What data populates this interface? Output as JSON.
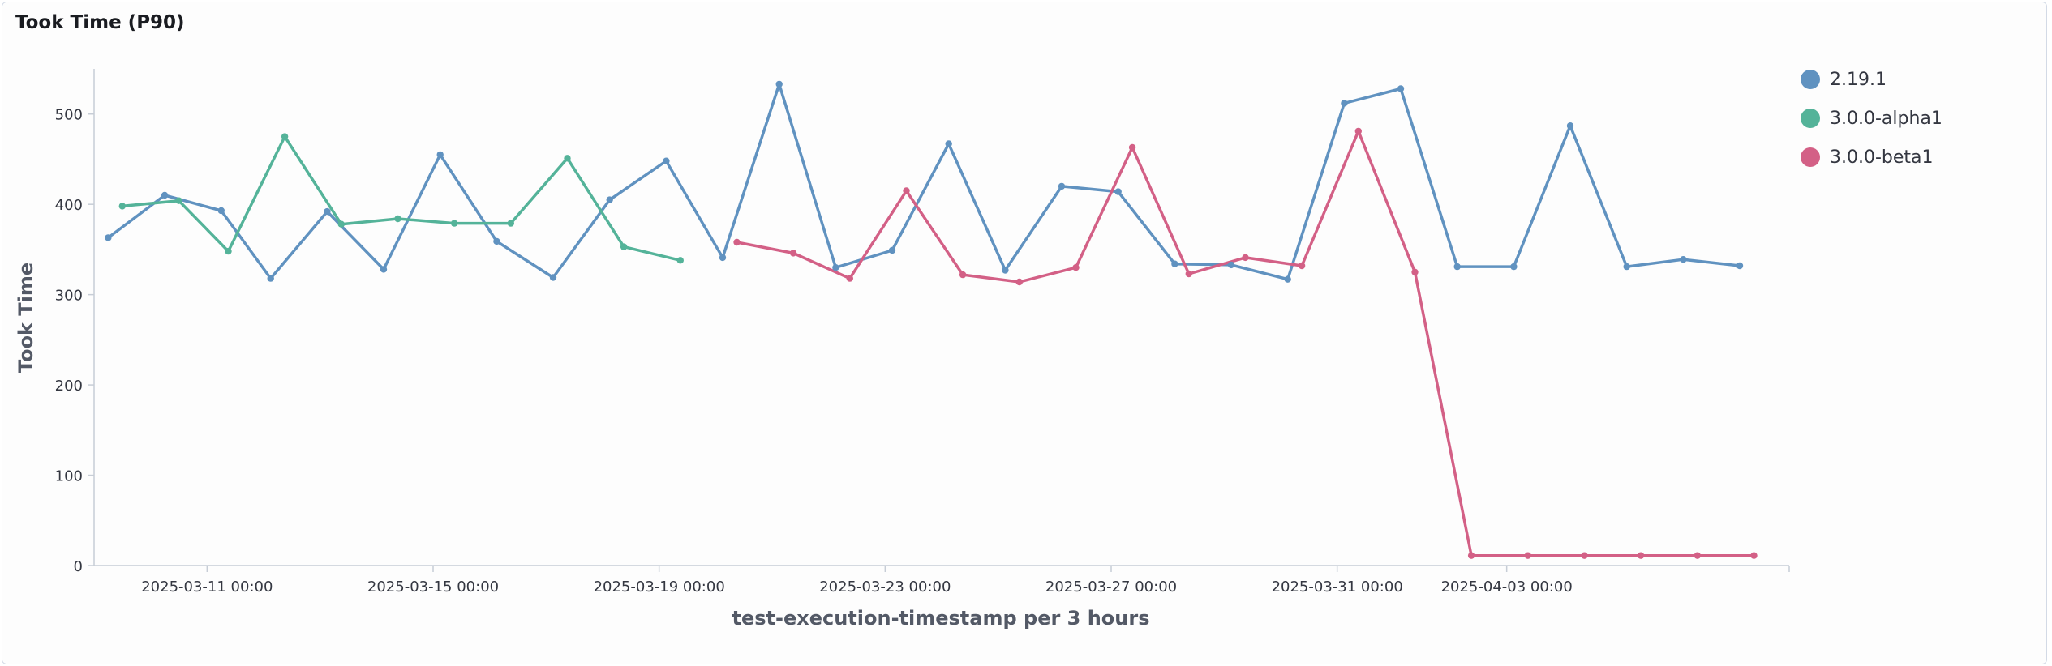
{
  "panel": {
    "title": "Took Time (P90)"
  },
  "chart_data": {
    "type": "line",
    "title": "Took Time (P90)",
    "xlabel": "test-execution-timestamp per 3 hours",
    "ylabel": "Took Time",
    "x_range": [
      "2025-03-09 00:00",
      "2025-04-08 00:00"
    ],
    "ylim": [
      0,
      550
    ],
    "y_ticks": [
      0,
      100,
      200,
      300,
      400,
      500
    ],
    "x_ticks": [
      {
        "t": "2025-03-11 00:00",
        "label": "2025-03-11 00:00"
      },
      {
        "t": "2025-03-15 00:00",
        "label": "2025-03-15 00:00"
      },
      {
        "t": "2025-03-19 00:00",
        "label": "2025-03-19 00:00"
      },
      {
        "t": "2025-03-23 00:00",
        "label": "2025-03-23 00:00"
      },
      {
        "t": "2025-03-27 00:00",
        "label": "2025-03-27 00:00"
      },
      {
        "t": "2025-03-31 00:00",
        "label": "2025-03-31 00:00"
      },
      {
        "t": "2025-04-03 00:00",
        "label": "2025-04-03 00:00"
      }
    ],
    "grid": false,
    "legend_position": "top-right",
    "series": [
      {
        "name": "2.19.1",
        "color": "#6092c0",
        "points": [
          [
            "2025-03-09 06:00",
            363
          ],
          [
            "2025-03-10 06:00",
            410
          ],
          [
            "2025-03-11 06:00",
            393
          ],
          [
            "2025-03-12 03:00",
            318
          ],
          [
            "2025-03-13 03:00",
            392
          ],
          [
            "2025-03-14 03:00",
            328
          ],
          [
            "2025-03-15 03:00",
            455
          ],
          [
            "2025-03-16 03:00",
            359
          ],
          [
            "2025-03-17 03:00",
            319
          ],
          [
            "2025-03-18 03:00",
            405
          ],
          [
            "2025-03-19 03:00",
            448
          ],
          [
            "2025-03-20 03:00",
            341
          ],
          [
            "2025-03-21 03:00",
            533
          ],
          [
            "2025-03-22 03:00",
            330
          ],
          [
            "2025-03-23 03:00",
            349
          ],
          [
            "2025-03-24 03:00",
            467
          ],
          [
            "2025-03-25 03:00",
            327
          ],
          [
            "2025-03-26 03:00",
            420
          ],
          [
            "2025-03-27 03:00",
            414
          ],
          [
            "2025-03-28 03:00",
            334
          ],
          [
            "2025-03-29 03:00",
            333
          ],
          [
            "2025-03-30 03:00",
            317
          ],
          [
            "2025-03-31 03:00",
            512
          ],
          [
            "2025-04-01 03:00",
            528
          ],
          [
            "2025-04-02 03:00",
            331
          ],
          [
            "2025-04-03 03:00",
            331
          ],
          [
            "2025-04-04 03:00",
            487
          ],
          [
            "2025-04-05 03:00",
            331
          ],
          [
            "2025-04-06 03:00",
            339
          ],
          [
            "2025-04-07 03:00",
            332
          ]
        ]
      },
      {
        "name": "3.0.0-alpha1",
        "color": "#54b399",
        "points": [
          [
            "2025-03-09 12:00",
            398
          ],
          [
            "2025-03-10 12:00",
            404
          ],
          [
            "2025-03-11 09:00",
            348
          ],
          [
            "2025-03-12 09:00",
            475
          ],
          [
            "2025-03-13 09:00",
            378
          ],
          [
            "2025-03-14 09:00",
            384
          ],
          [
            "2025-03-15 09:00",
            379
          ],
          [
            "2025-03-16 09:00",
            379
          ],
          [
            "2025-03-17 09:00",
            451
          ],
          [
            "2025-03-18 09:00",
            353
          ],
          [
            "2025-03-19 09:00",
            338
          ]
        ]
      },
      {
        "name": "3.0.0-beta1",
        "color": "#d36086",
        "points": [
          [
            "2025-03-20 09:00",
            358
          ],
          [
            "2025-03-21 09:00",
            346
          ],
          [
            "2025-03-22 09:00",
            318
          ],
          [
            "2025-03-23 09:00",
            415
          ],
          [
            "2025-03-24 09:00",
            322
          ],
          [
            "2025-03-25 09:00",
            314
          ],
          [
            "2025-03-26 09:00",
            330
          ],
          [
            "2025-03-27 09:00",
            463
          ],
          [
            "2025-03-28 09:00",
            323
          ],
          [
            "2025-03-29 09:00",
            341
          ],
          [
            "2025-03-30 09:00",
            332
          ],
          [
            "2025-03-31 09:00",
            481
          ],
          [
            "2025-04-01 09:00",
            325
          ],
          [
            "2025-04-02 09:00",
            11
          ],
          [
            "2025-04-03 09:00",
            11
          ],
          [
            "2025-04-04 09:00",
            11
          ],
          [
            "2025-04-05 09:00",
            11
          ],
          [
            "2025-04-06 09:00",
            11
          ],
          [
            "2025-04-07 09:00",
            11
          ]
        ]
      }
    ]
  }
}
